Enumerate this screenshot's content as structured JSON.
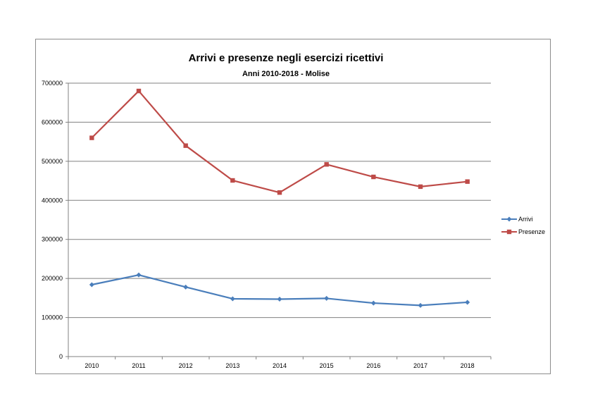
{
  "chart_data": {
    "type": "line",
    "title": "Arrivi e presenze negli esercizi ricettivi",
    "subtitle": "Anni 2010-2018 - Molise",
    "xlabel": "",
    "ylabel": "",
    "categories": [
      "2010",
      "2011",
      "2012",
      "2013",
      "2014",
      "2015",
      "2016",
      "2017",
      "2018"
    ],
    "ylim": [
      0,
      700000
    ],
    "yticks": [
      0,
      100000,
      200000,
      300000,
      400000,
      500000,
      600000,
      700000
    ],
    "grid": true,
    "legend": "right",
    "series": [
      {
        "name": "Arrivi",
        "color": "#4a7ebb",
        "marker": "diamond",
        "values": [
          184000,
          209000,
          178000,
          148000,
          147000,
          149000,
          137000,
          131000,
          139000
        ]
      },
      {
        "name": "Presenze",
        "color": "#be4b48",
        "marker": "square",
        "values": [
          560000,
          680000,
          540000,
          451000,
          420000,
          492000,
          460000,
          435000,
          448000
        ]
      }
    ]
  }
}
